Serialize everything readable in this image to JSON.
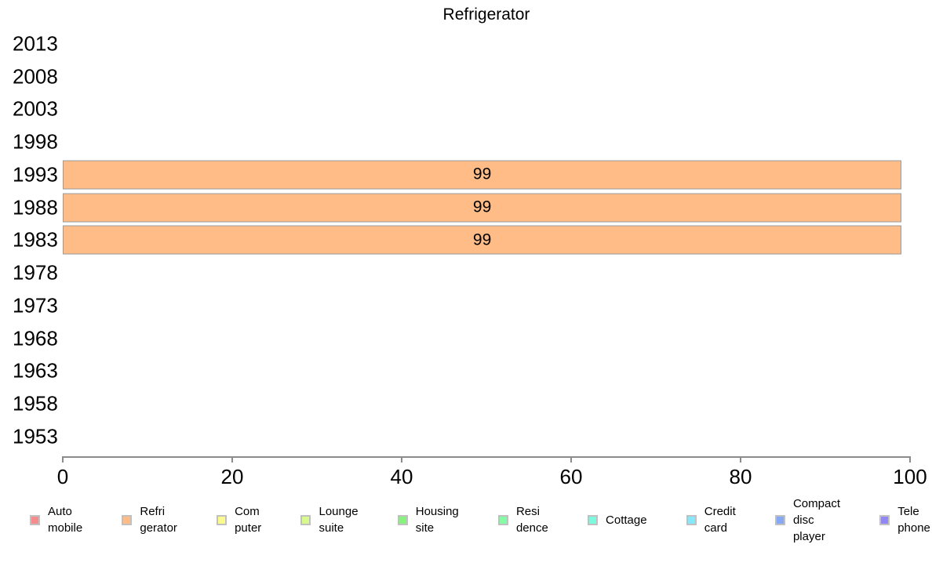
{
  "chart_data": {
    "type": "bar",
    "orientation": "horizontal",
    "title": "Refrigerator",
    "categories": [
      "2013",
      "2008",
      "2003",
      "1998",
      "1993",
      "1988",
      "1983",
      "1978",
      "1973",
      "1968",
      "1963",
      "1958",
      "1953"
    ],
    "series": [
      {
        "name": "Refrigerator",
        "values": [
          null,
          null,
          null,
          null,
          99,
          99,
          99,
          null,
          null,
          null,
          null,
          null,
          null
        ]
      }
    ],
    "bar_labels": [
      "",
      "",
      "",
      "",
      "99",
      "99",
      "99",
      "",
      "",
      "",
      "",
      "",
      ""
    ],
    "xlim": [
      0,
      100
    ],
    "xticks": [
      0,
      20,
      40,
      60,
      80,
      100
    ],
    "grid": false,
    "legend_position": "bottom"
  },
  "colors": {
    "bar_fill": "#ffbc87",
    "bar_border": "#9a9a9a",
    "axis": "#8c8c8c",
    "text": "#000000",
    "background": "#ffffff",
    "swatch_border": "#c0c0c0"
  },
  "legend": {
    "items": [
      {
        "id": "auto-mobile",
        "lines": [
          "Auto",
          "mobile"
        ],
        "color": "#f88c8c"
      },
      {
        "id": "refrigerator",
        "lines": [
          "Refri",
          "gerator"
        ],
        "color": "#ffbc87"
      },
      {
        "id": "computer",
        "lines": [
          "Com",
          "puter"
        ],
        "color": "#fbfb8d"
      },
      {
        "id": "lounge-suite",
        "lines": [
          "Lounge",
          "suite"
        ],
        "color": "#d8fa8d"
      },
      {
        "id": "housing-site",
        "lines": [
          "Housing",
          "site"
        ],
        "color": "#87f37e"
      },
      {
        "id": "residence",
        "lines": [
          "Resi",
          "dence"
        ],
        "color": "#85fba6"
      },
      {
        "id": "cottage",
        "lines": [
          "Cottage"
        ],
        "color": "#7df9e0"
      },
      {
        "id": "credit-card",
        "lines": [
          "Credit",
          "card"
        ],
        "color": "#86e8fb"
      },
      {
        "id": "compact-disc-player",
        "lines": [
          "Compact",
          "disc",
          "player"
        ],
        "color": "#85a8f7"
      },
      {
        "id": "telephone",
        "lines": [
          "Tele",
          "phone"
        ],
        "color": "#9387f8"
      }
    ]
  }
}
